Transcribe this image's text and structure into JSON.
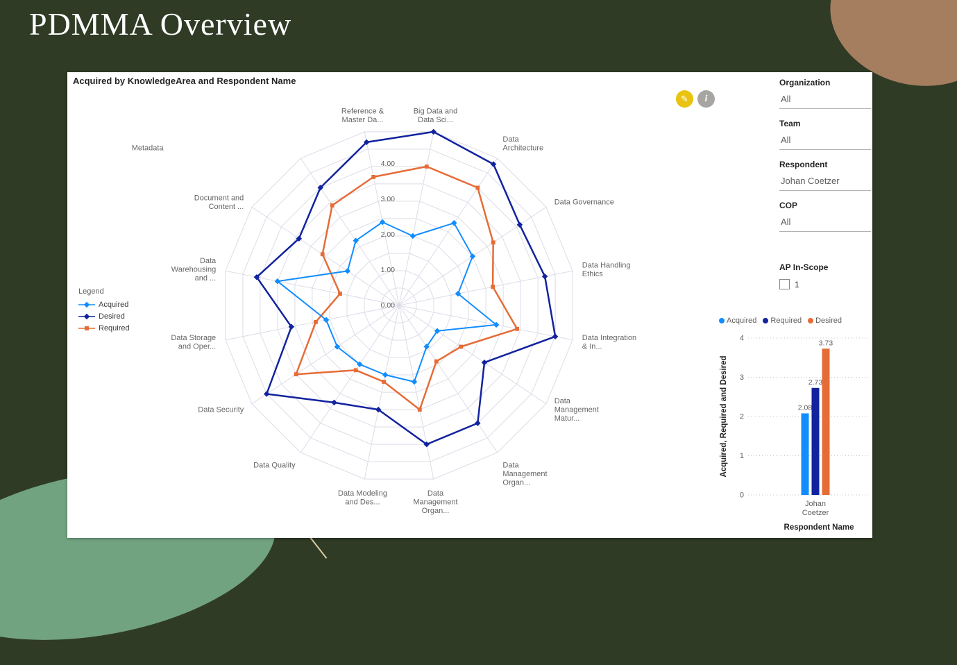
{
  "page": {
    "title": "PDMMA Overview"
  },
  "visual": {
    "title": "Acquired by KnowledgeArea and Respondent Name",
    "edit_icon": "pencil",
    "info_icon": "info"
  },
  "colors": {
    "acquired": "#118DFF",
    "required_navy": "#12239E",
    "desired_orange": "#E66C37",
    "accent_yellow": "#e9c310"
  },
  "radar_legend": {
    "title": "Legend",
    "items": [
      {
        "label": "Acquired",
        "color": "#118DFF",
        "marker": "diamond"
      },
      {
        "label": "Desired",
        "color": "#12239E",
        "marker": "diamond"
      },
      {
        "label": "Required",
        "color": "#E66C37",
        "marker": "square"
      }
    ]
  },
  "filters": {
    "items": [
      {
        "label": "Organization",
        "value": "All"
      },
      {
        "label": "Team",
        "value": "All"
      },
      {
        "label": "Respondent",
        "value": "Johan Coetzer"
      },
      {
        "label": "COP",
        "value": "All"
      }
    ]
  },
  "ap_in_scope": {
    "label": "AP In-Scope",
    "option": "1",
    "checked": false
  },
  "bar_legend": [
    {
      "label": "Acquired",
      "color": "#118DFF"
    },
    {
      "label": "Required",
      "color": "#12239E"
    },
    {
      "label": "Desired",
      "color": "#E66C37"
    }
  ],
  "chart_data": [
    {
      "type": "radar",
      "title": "Acquired by KnowledgeArea and Respondent Name",
      "max": 5,
      "rings": [
        0,
        1,
        2,
        3,
        4
      ],
      "ring_label_format": "0.00 1.00 2.00 3.00 4.00",
      "axes": [
        "Big Data and\nData Sci...",
        "Data\nArchitecture",
        "Data Governance",
        "Data Handling\nEthics",
        "Data Integration\n& In...",
        "Data\nManagement\nMatur...",
        "Data\nManagement\nOrgan...",
        "Data\nManagement\nOrgan...",
        "Data Modeling\nand Des...",
        "Data Quality",
        "Data Security",
        "Data Storage\nand Oper...",
        "Data\nWarehousing\nand ...",
        "Document and\nContent ...",
        "Metadata",
        "Reference &\nMaster Da..."
      ],
      "series": [
        {
          "name": "Acquired",
          "color": "#118DFF",
          "marker": "diamond",
          "stroke": 2,
          "values": [
            2.0,
            2.8,
            2.5,
            1.7,
            2.8,
            1.3,
            1.4,
            2.2,
            2.0,
            2.0,
            2.1,
            2.1,
            3.5,
            1.75,
            2.2,
            2.4
          ]
        },
        {
          "name": "Desired",
          "color": "#12239E",
          "marker": "diamond",
          "stroke": 2.5,
          "values": [
            5.0,
            4.8,
            4.1,
            4.2,
            4.5,
            2.9,
            4.0,
            4.0,
            3.0,
            3.3,
            4.5,
            3.1,
            4.1,
            3.4,
            4.0,
            4.7
          ]
        },
        {
          "name": "Required",
          "color": "#E66C37",
          "marker": "square",
          "stroke": 2.5,
          "values": [
            4.0,
            4.0,
            3.2,
            2.7,
            3.4,
            2.1,
            1.9,
            3.0,
            2.2,
            2.2,
            3.5,
            2.4,
            1.7,
            2.6,
            3.4,
            3.7
          ]
        }
      ]
    },
    {
      "type": "bar",
      "categories": [
        "Johan\nCoetzer"
      ],
      "series": [
        {
          "name": "Acquired",
          "color": "#118DFF",
          "values": [
            2.08
          ]
        },
        {
          "name": "Required",
          "color": "#12239E",
          "values": [
            2.73
          ]
        },
        {
          "name": "Desired",
          "color": "#E66C37",
          "values": [
            3.73
          ]
        }
      ],
      "ylabel": "Acquired, Required and Desired",
      "xlabel": "Respondent Name",
      "ylim": [
        0,
        4
      ],
      "yticks": [
        0,
        1,
        2,
        3,
        4
      ],
      "grid": "dotted",
      "legend_position": "top"
    }
  ]
}
